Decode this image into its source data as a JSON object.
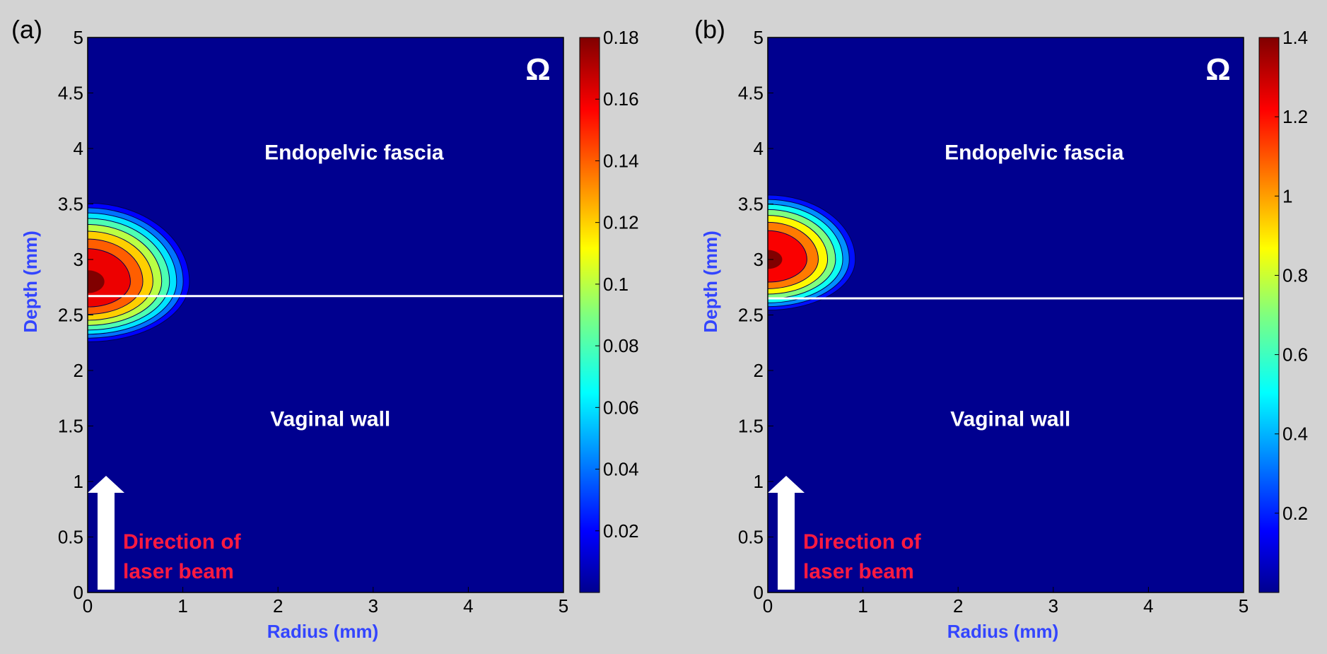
{
  "colors": {
    "background": "#d3d3d3",
    "axis_title": "#3345ff",
    "region_text": "#ffffff",
    "beam_text": "#ff1a40",
    "boundary_line": "#ffffff"
  },
  "chart_data": [
    {
      "type": "heatmap",
      "panel_label": "(a)",
      "symbol": "Ω",
      "title": "",
      "xlabel": "Radius (mm)",
      "ylabel": "Depth (mm)",
      "xlim": [
        0,
        5
      ],
      "ylim": [
        0,
        5
      ],
      "xticks": [
        "0",
        "1",
        "2",
        "3",
        "4",
        "5"
      ],
      "yticks": [
        "0",
        "0.5",
        "1",
        "1.5",
        "2",
        "2.5",
        "3",
        "3.5",
        "4",
        "4.5",
        "5"
      ],
      "colorbar": {
        "range": [
          0,
          0.18
        ],
        "ticks": [
          "0.02",
          "0.04",
          "0.06",
          "0.08",
          "0.1",
          "0.12",
          "0.14",
          "0.16",
          "0.18"
        ]
      },
      "boundary_depth": 2.67,
      "regions": {
        "upper": "Endopelvic fascia",
        "lower": "Vaginal wall"
      },
      "beam_annotation": [
        "Direction of",
        "laser beam"
      ],
      "peak": {
        "radius": 0,
        "depth": 2.8,
        "value": 0.18
      },
      "contour_levels": [
        0.02,
        0.04,
        0.06,
        0.08,
        0.1,
        0.12,
        0.14,
        0.16
      ],
      "extent": {
        "radius": 1.1,
        "depth_top": 3.65,
        "depth_bottom": 2.15
      }
    },
    {
      "type": "heatmap",
      "panel_label": "(b)",
      "symbol": "Ω",
      "title": "",
      "xlabel": "Radius (mm)",
      "ylabel": "Depth (mm)",
      "xlim": [
        0,
        5
      ],
      "ylim": [
        0,
        5
      ],
      "xticks": [
        "0",
        "1",
        "2",
        "3",
        "4",
        "5"
      ],
      "yticks": [
        "0",
        "0.5",
        "1",
        "1.5",
        "2",
        "2.5",
        "3",
        "3.5",
        "4",
        "4.5",
        "5"
      ],
      "colorbar": {
        "range": [
          0,
          1.4
        ],
        "ticks": [
          "0.2",
          "0.4",
          "0.6",
          "0.8",
          "1",
          "1.2",
          "1.4"
        ]
      },
      "boundary_depth": 2.65,
      "regions": {
        "upper": "Endopelvic fascia",
        "lower": "Vaginal wall"
      },
      "beam_annotation": [
        "Direction of",
        "laser beam"
      ],
      "peak": {
        "radius": 0,
        "depth": 3.0,
        "value": 1.4
      },
      "contour_levels": [
        0.175,
        0.35,
        0.525,
        0.7,
        0.875,
        1.05,
        1.225
      ],
      "extent": {
        "radius": 0.95,
        "depth_top": 3.7,
        "depth_bottom": 2.45
      }
    }
  ]
}
